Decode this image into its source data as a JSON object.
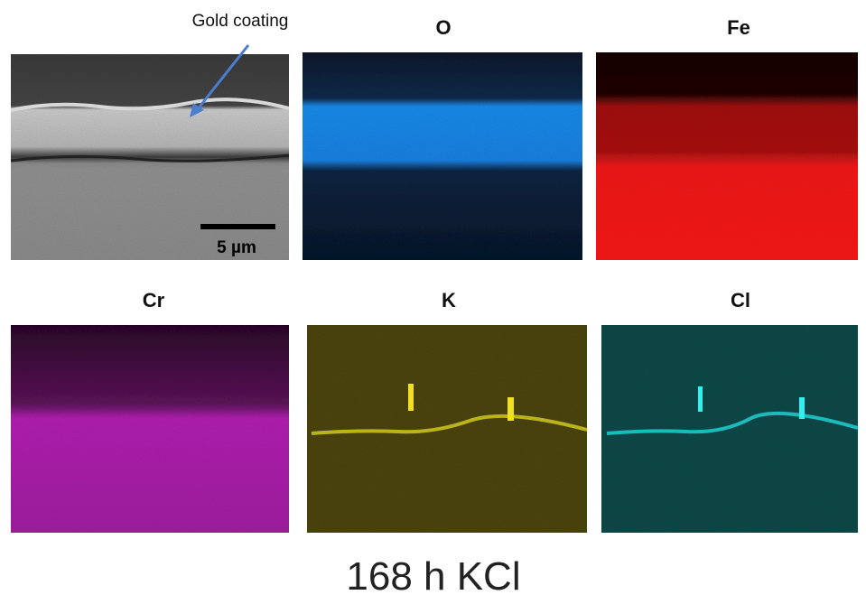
{
  "figure": {
    "sem_panel": {
      "annotation": "Gold coating",
      "scale_bar": "5 µm"
    },
    "maps": [
      {
        "title": "O"
      },
      {
        "title": "Fe"
      },
      {
        "title": "Cr"
      },
      {
        "title": "K"
      },
      {
        "title": "Cl"
      }
    ],
    "caption": "168 h KCl"
  }
}
